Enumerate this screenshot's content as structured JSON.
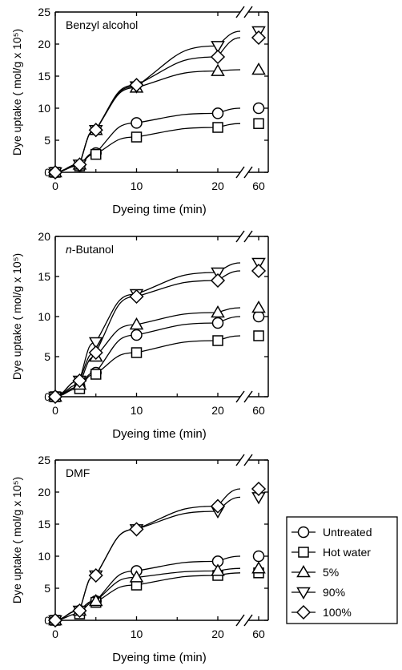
{
  "chart_data": [
    {
      "type": "line",
      "title": "Benzyl alcohol",
      "xlabel": "Dyeing time (min)",
      "ylabel": "Dye uptake ( mol/g x 10⁵)",
      "x": [
        0,
        3,
        5,
        10,
        20,
        60
      ],
      "x_ticks": [
        "0",
        "10",
        "20",
        "60"
      ],
      "x_axis_break": "between 20 and 60",
      "ylim": [
        0,
        25
      ],
      "y_ticks": [
        "0",
        "5",
        "10",
        "15",
        "20",
        "25"
      ],
      "grid": false,
      "series": [
        {
          "name": "Untreated",
          "marker": "circle",
          "values": [
            0,
            1.0,
            3.0,
            7.7,
            9.2,
            10.0
          ]
        },
        {
          "name": "Hot water",
          "marker": "square",
          "values": [
            0,
            1.0,
            2.8,
            5.5,
            7.0,
            7.6
          ]
        },
        {
          "name": "5%",
          "marker": "triangle-up",
          "values": [
            0,
            1.2,
            6.6,
            13.2,
            15.8,
            16.0
          ]
        },
        {
          "name": "90%",
          "marker": "triangle-down",
          "values": [
            0,
            1.2,
            6.6,
            13.4,
            19.7,
            22.0
          ]
        },
        {
          "name": "100%",
          "marker": "diamond",
          "values": [
            0,
            1.2,
            6.6,
            13.6,
            18.0,
            21.0
          ]
        }
      ]
    },
    {
      "type": "line",
      "title": "n-Butanol",
      "title_prefix": "n",
      "title_rest": "-Butanol",
      "xlabel": "Dyeing time (min)",
      "ylabel": "Dye uptake ( mol/g x 10⁵)",
      "x": [
        0,
        3,
        5,
        10,
        20,
        60
      ],
      "x_ticks": [
        "0",
        "10",
        "20",
        "60"
      ],
      "x_axis_break": "between 20 and 60",
      "ylim": [
        0,
        20
      ],
      "y_ticks": [
        "0",
        "5",
        "10",
        "15",
        "20"
      ],
      "grid": false,
      "series": [
        {
          "name": "Untreated",
          "marker": "circle",
          "values": [
            0,
            1.2,
            3.0,
            7.7,
            9.2,
            10.0
          ]
        },
        {
          "name": "Hot water",
          "marker": "square",
          "values": [
            0,
            1.0,
            2.8,
            5.5,
            7.0,
            7.6
          ]
        },
        {
          "name": "5%",
          "marker": "triangle-up",
          "values": [
            0,
            1.5,
            5.0,
            9.0,
            10.5,
            11.1
          ]
        },
        {
          "name": "90%",
          "marker": "triangle-down",
          "values": [
            0,
            2.0,
            6.8,
            12.8,
            15.5,
            16.7
          ]
        },
        {
          "name": "100%",
          "marker": "diamond",
          "values": [
            0,
            2.0,
            5.5,
            12.5,
            14.5,
            15.7
          ]
        }
      ]
    },
    {
      "type": "line",
      "title": "DMF",
      "xlabel": "Dyeing time (min)",
      "ylabel": "Dye uptake ( mol/g x 10⁵)",
      "x": [
        0,
        3,
        5,
        10,
        20,
        60
      ],
      "x_ticks": [
        "0",
        "10",
        "20",
        "60"
      ],
      "x_axis_break": "between 20 and 60",
      "ylim": [
        0,
        25
      ],
      "y_ticks": [
        "0",
        "5",
        "10",
        "15",
        "20",
        "25"
      ],
      "grid": false,
      "legend_position": "right, outside",
      "series": [
        {
          "name": "Untreated",
          "marker": "circle",
          "values": [
            0,
            1.5,
            3.0,
            7.7,
            9.2,
            10.0
          ]
        },
        {
          "name": "Hot water",
          "marker": "square",
          "values": [
            0,
            1.0,
            2.8,
            5.5,
            7.0,
            7.4
          ]
        },
        {
          "name": "5%",
          "marker": "triangle-up",
          "values": [
            0,
            1.5,
            3.0,
            6.7,
            7.7,
            8.1
          ]
        },
        {
          "name": "90%",
          "marker": "triangle-down",
          "values": [
            0,
            1.5,
            7.0,
            14.2,
            17.0,
            19.2
          ]
        },
        {
          "name": "100%",
          "marker": "diamond",
          "values": [
            0,
            1.5,
            7.0,
            14.2,
            17.8,
            20.5
          ]
        }
      ]
    }
  ],
  "legend": {
    "entries": [
      {
        "label": "Untreated",
        "marker": "circle"
      },
      {
        "label": "Hot water",
        "marker": "square"
      },
      {
        "label": "5%",
        "marker": "triangle-up"
      },
      {
        "label": "90%",
        "marker": "triangle-down"
      },
      {
        "label": "100%",
        "marker": "diamond"
      }
    ]
  },
  "colors": {
    "ink": "#000000",
    "marker_fill": "#ffffff"
  }
}
